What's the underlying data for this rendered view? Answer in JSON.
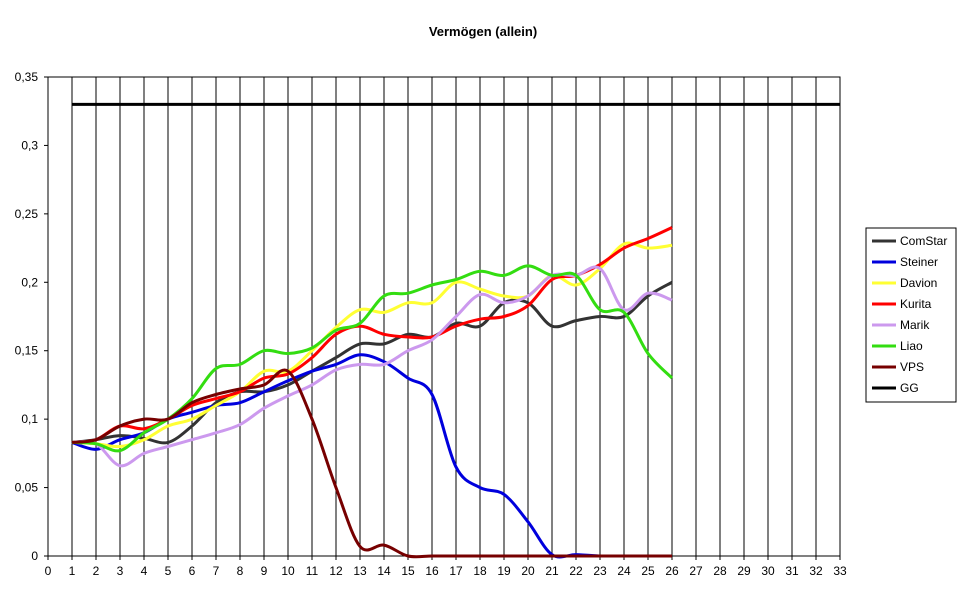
{
  "chart_data": {
    "type": "line",
    "title": "Vermögen (allein)",
    "xlabel": "",
    "ylabel": "",
    "xlim": [
      0,
      33
    ],
    "ylim": [
      0,
      0.35
    ],
    "x_ticks": [
      "0",
      "1",
      "2",
      "3",
      "4",
      "5",
      "6",
      "7",
      "8",
      "9",
      "10",
      "11",
      "12",
      "13",
      "14",
      "15",
      "16",
      "17",
      "18",
      "19",
      "20",
      "21",
      "22",
      "23",
      "24",
      "25",
      "26",
      "27",
      "28",
      "29",
      "30",
      "31",
      "32",
      "33"
    ],
    "y_ticks": [
      {
        "value": 0,
        "label": "0"
      },
      {
        "value": 0.05,
        "label": "0,05"
      },
      {
        "value": 0.1,
        "label": "0,1"
      },
      {
        "value": 0.15,
        "label": "0,15"
      },
      {
        "value": 0.2,
        "label": "0,2"
      },
      {
        "value": 0.25,
        "label": "0,25"
      },
      {
        "value": 0.3,
        "label": "0,3"
      },
      {
        "value": 0.35,
        "label": "0,35"
      }
    ],
    "grid": "vertical",
    "legend_position": "right",
    "series": [
      {
        "name": "ComStar",
        "color": "#333333",
        "x": [
          1,
          2,
          3,
          4,
          5,
          6,
          7,
          8,
          9,
          10,
          11,
          12,
          13,
          14,
          15,
          16,
          17,
          18,
          19,
          20,
          21,
          22,
          23,
          24,
          25,
          26
        ],
        "y": [
          0.083,
          0.085,
          0.088,
          0.086,
          0.083,
          0.095,
          0.112,
          0.12,
          0.12,
          0.125,
          0.135,
          0.145,
          0.155,
          0.155,
          0.162,
          0.16,
          0.17,
          0.168,
          0.185,
          0.185,
          0.168,
          0.172,
          0.175,
          0.175,
          0.19,
          0.2
        ]
      },
      {
        "name": "Steiner",
        "color": "#0000dd",
        "x": [
          1,
          2,
          3,
          4,
          5,
          6,
          7,
          8,
          9,
          10,
          11,
          12,
          13,
          14,
          15,
          16,
          17,
          18,
          19,
          20,
          21,
          22,
          23
        ],
        "y": [
          0.083,
          0.078,
          0.085,
          0.09,
          0.1,
          0.105,
          0.11,
          0.112,
          0.12,
          0.128,
          0.135,
          0.14,
          0.147,
          0.142,
          0.13,
          0.118,
          0.065,
          0.05,
          0.045,
          0.025,
          0.001,
          0.001,
          0.0
        ]
      },
      {
        "name": "Davion",
        "color": "#ffff33",
        "x": [
          1,
          2,
          3,
          4,
          5,
          6,
          7,
          8,
          9,
          10,
          11,
          12,
          13,
          14,
          15,
          16,
          17,
          18,
          19,
          20,
          21,
          22,
          23,
          24,
          25,
          26
        ],
        "y": [
          0.083,
          0.082,
          0.08,
          0.085,
          0.095,
          0.1,
          0.11,
          0.12,
          0.135,
          0.135,
          0.15,
          0.167,
          0.18,
          0.178,
          0.185,
          0.185,
          0.2,
          0.195,
          0.19,
          0.19,
          0.205,
          0.198,
          0.21,
          0.228,
          0.225,
          0.227
        ]
      },
      {
        "name": "Kurita",
        "color": "#ff0000",
        "x": [
          1,
          2,
          3,
          4,
          5,
          6,
          7,
          8,
          9,
          10,
          11,
          12,
          13,
          14,
          15,
          16,
          17,
          18,
          19,
          20,
          21,
          22,
          23,
          24,
          25,
          26
        ],
        "y": [
          0.083,
          0.085,
          0.095,
          0.093,
          0.1,
          0.11,
          0.115,
          0.12,
          0.13,
          0.133,
          0.145,
          0.162,
          0.168,
          0.162,
          0.16,
          0.16,
          0.168,
          0.173,
          0.175,
          0.183,
          0.202,
          0.205,
          0.213,
          0.225,
          0.232,
          0.24
        ]
      },
      {
        "name": "Marik",
        "color": "#cc99ee",
        "x": [
          1,
          2,
          3,
          4,
          5,
          6,
          7,
          8,
          9,
          10,
          11,
          12,
          13,
          14,
          15,
          16,
          17,
          18,
          19,
          20,
          21,
          22,
          23,
          24,
          25,
          26
        ],
        "y": [
          0.083,
          0.082,
          0.066,
          0.075,
          0.08,
          0.085,
          0.09,
          0.096,
          0.108,
          0.117,
          0.125,
          0.136,
          0.14,
          0.14,
          0.15,
          0.158,
          0.175,
          0.191,
          0.185,
          0.19,
          0.205,
          0.205,
          0.21,
          0.18,
          0.192,
          0.187
        ]
      },
      {
        "name": "Liao",
        "color": "#33dd11",
        "x": [
          1,
          2,
          3,
          4,
          5,
          6,
          7,
          8,
          9,
          10,
          11,
          12,
          13,
          14,
          15,
          16,
          17,
          18,
          19,
          20,
          21,
          22,
          23,
          24,
          25,
          26
        ],
        "y": [
          0.083,
          0.082,
          0.077,
          0.09,
          0.1,
          0.115,
          0.137,
          0.14,
          0.15,
          0.148,
          0.152,
          0.165,
          0.17,
          0.19,
          0.192,
          0.198,
          0.202,
          0.208,
          0.205,
          0.212,
          0.205,
          0.205,
          0.18,
          0.178,
          0.148,
          0.13
        ]
      },
      {
        "name": "VPS",
        "color": "#770000",
        "x": [
          1,
          2,
          3,
          4,
          5,
          6,
          7,
          8,
          9,
          10,
          11,
          12,
          13,
          14,
          15,
          16,
          17,
          18,
          19,
          20,
          21,
          22,
          23,
          24,
          25,
          26
        ],
        "y": [
          0.083,
          0.085,
          0.095,
          0.1,
          0.1,
          0.112,
          0.118,
          0.122,
          0.125,
          0.135,
          0.1,
          0.05,
          0.007,
          0.008,
          0.0,
          0.0,
          0.0,
          0.0,
          0.0,
          0.0,
          0.0,
          0.0,
          0.0,
          0.0,
          0.0,
          0.0
        ]
      },
      {
        "name": "GG",
        "color": "#000000",
        "x": [
          1,
          33
        ],
        "y": [
          0.33,
          0.33
        ]
      }
    ]
  }
}
